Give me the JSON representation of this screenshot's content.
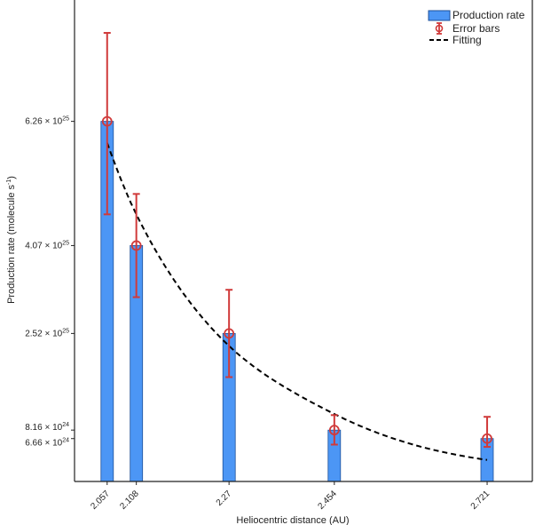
{
  "chart_data": {
    "type": "bar",
    "title": "",
    "xlabel": "Heliocentric distance (AU)",
    "ylabel": "Production rate (molecule s",
    "ylabel_sup": "-1",
    "ylabel_close": ")",
    "x_ticks": [
      "2.057",
      "2.108",
      "2.27",
      "2.454",
      "2.721"
    ],
    "y_ticks": [
      {
        "value": 6.26e+25,
        "mantissa": "6.26",
        "times": "×",
        "base": "10",
        "exp": "25"
      },
      {
        "value": 4.07e+25,
        "mantissa": "4.07",
        "times": "×",
        "base": "10",
        "exp": "25"
      },
      {
        "value": 2.52e+25,
        "mantissa": "2.52",
        "times": "×",
        "base": "10",
        "exp": "25"
      },
      {
        "value": 8.16e+24,
        "mantissa": "8.16",
        "times": "×",
        "base": "10",
        "exp": "24"
      },
      {
        "value": 6.66e+24,
        "mantissa": "6.66",
        "times": "×",
        "base": "10",
        "exp": "24"
      }
    ],
    "xlim": [
      2.0,
      2.8
    ],
    "ylim": [
      -9e+23,
      8.4e+25
    ],
    "grid": false,
    "legend_position": "top-right",
    "series": [
      {
        "name": "Production rate",
        "kind": "bar",
        "color": "#4c96f5",
        "x": [
          2.057,
          2.108,
          2.27,
          2.454,
          2.721
        ],
        "y": [
          6.26e+25,
          4.07e+25,
          2.52e+25,
          8.16e+24,
          6.66e+24
        ]
      },
      {
        "name": "Error bars",
        "kind": "errorbar",
        "color": "#d03a3a",
        "x": [
          2.057,
          2.108,
          2.27,
          2.454,
          2.721
        ],
        "y": [
          6.26e+25,
          4.07e+25,
          2.52e+25,
          8.16e+24,
          6.66e+24
        ],
        "upper": [
          7.82e+25,
          4.98e+25,
          3.29e+25,
          1.08e+25,
          1.05e+25
        ],
        "lower": [
          4.62e+25,
          3.16e+25,
          1.75e+25,
          5.6e+24,
          5.2e+24
        ]
      },
      {
        "name": "Fitting",
        "kind": "line",
        "style": "dashed",
        "color": "#000000",
        "x": [
          2.057,
          2.108,
          2.27,
          2.454,
          2.721
        ],
        "y": [
          5.88e+25,
          4.62e+25,
          2.3e+25,
          1.1e+25,
          2.9e+24
        ]
      }
    ]
  }
}
